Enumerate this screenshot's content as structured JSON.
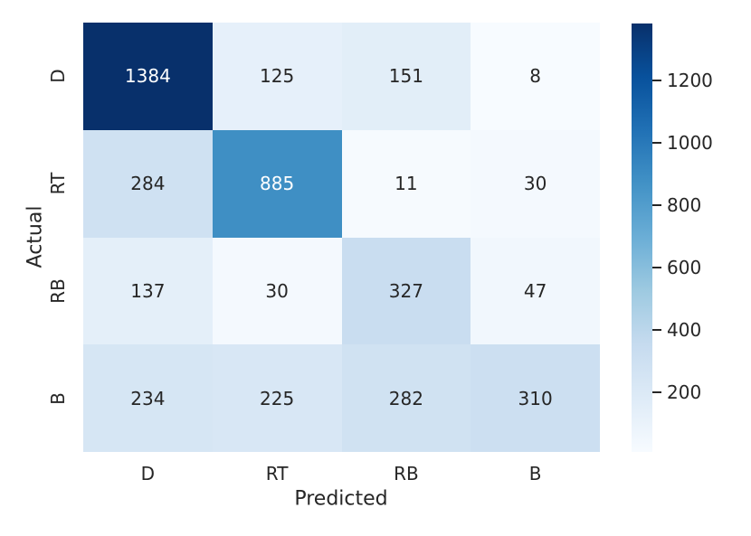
{
  "chart_data": {
    "type": "heatmap",
    "title": "",
    "xlabel": "Predicted",
    "ylabel": "Actual",
    "x_categories": [
      "D",
      "RT",
      "RB",
      "B"
    ],
    "y_categories": [
      "D",
      "RT",
      "RB",
      "B"
    ],
    "values": [
      [
        1384,
        125,
        151,
        8
      ],
      [
        284,
        885,
        11,
        30
      ],
      [
        137,
        30,
        327,
        47
      ],
      [
        234,
        225,
        282,
        310
      ]
    ],
    "vmin": 8,
    "vmax": 1384,
    "colormap": "Blues",
    "colorbar_ticks": [
      200,
      400,
      600,
      800,
      1000,
      1200
    ],
    "colormap_stops": [
      "#f7fbff",
      "#deebf7",
      "#c6dbef",
      "#9ecae1",
      "#6baed6",
      "#4292c6",
      "#2171b5",
      "#08519c",
      "#08306b"
    ],
    "cell_colors": [
      [
        "#08306b",
        "#e6f0fa",
        "#e2eef8",
        "#f7fbff"
      ],
      [
        "#cfe1f2",
        "#3f8fc4",
        "#f6fafe",
        "#f4f9fe"
      ],
      [
        "#e4eff9",
        "#f4f9fe",
        "#c9ddf0",
        "#f1f7fd"
      ],
      [
        "#d6e6f4",
        "#d8e7f5",
        "#d0e2f2",
        "#ccdff1"
      ]
    ],
    "cell_text_colors": [
      [
        "#ffffff",
        "#262626",
        "#262626",
        "#262626"
      ],
      [
        "#262626",
        "#ffffff",
        "#262626",
        "#262626"
      ],
      [
        "#262626",
        "#262626",
        "#262626",
        "#262626"
      ],
      [
        "#262626",
        "#262626",
        "#262626",
        "#262626"
      ]
    ],
    "text_color": "#262626",
    "background": "#ffffff",
    "legend_position": "right-colorbar",
    "grid": false
  }
}
